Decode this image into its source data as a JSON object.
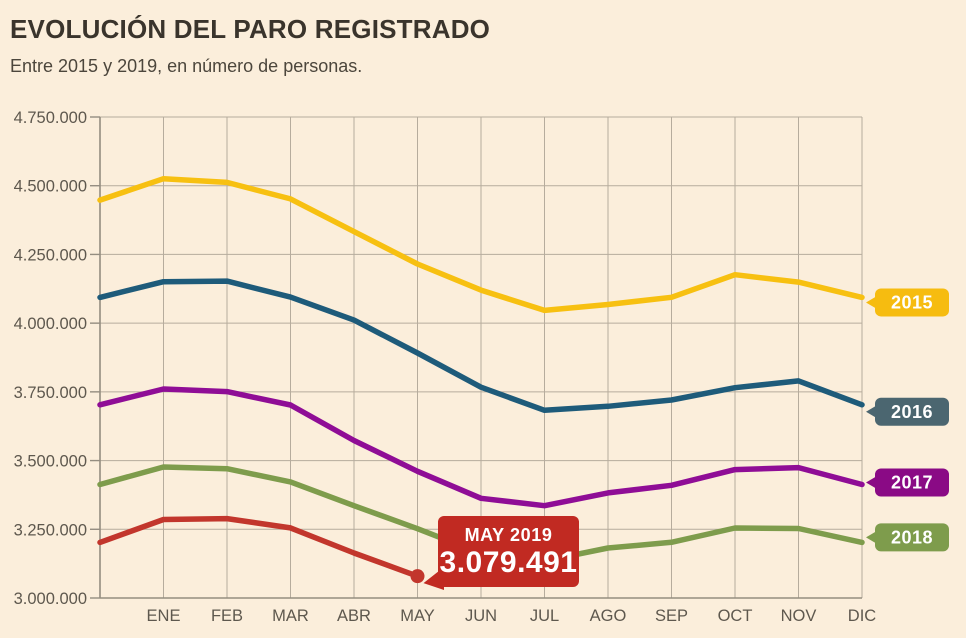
{
  "chart_data": {
    "type": "line",
    "title": "EVOLUCIÓN DEL PARO REGISTRADO",
    "subtitle": "Entre 2015 y 2019, en número de personas.",
    "x_categories": [
      "ENE",
      "FEB",
      "MAR",
      "ABR",
      "MAY",
      "JUN",
      "JUL",
      "AGO",
      "SEP",
      "OCT",
      "NOV",
      "DIC"
    ],
    "y_min": 3000000,
    "y_max": 4750000,
    "y_step": 250000,
    "y_tick_labels": [
      "4.750.000",
      "4.500.000",
      "4.250.000",
      "4.000.000",
      "3.750.000",
      "3.500.000",
      "3.250.000",
      "3.000.000"
    ],
    "grid": true,
    "legend_position": "right-tags",
    "series_note": "each series starts with the previous December value drawn on the y-axis",
    "series": [
      {
        "name": "2015",
        "color": "#F7C011",
        "tag_color": "#F6BC10",
        "tag_dy": 5,
        "prev_dec": 4447711,
        "values": [
          4525691,
          4512153,
          4451939,
          4333016,
          4215031,
          4120304,
          4046276,
          4067955,
          4094042,
          4176369,
          4149298,
          4093508
        ]
      },
      {
        "name": "2016",
        "color": "#1E5B7A",
        "tag_color": "#4B6670",
        "tag_dy": 7,
        "prev_dec": 4093508,
        "values": [
          4150755,
          4152986,
          4094770,
          4011171,
          3891403,
          3767054,
          3683061,
          3697496,
          3720297,
          3764982,
          3789823,
          3702974
        ]
      },
      {
        "name": "2017",
        "color": "#8F0D96",
        "tag_color": "#8A0A85",
        "tag_dy": -2,
        "prev_dec": 3702974,
        "values": [
          3760231,
          3750876,
          3702317,
          3573036,
          3461128,
          3362811,
          3335924,
          3382324,
          3410182,
          3467026,
          3474281,
          3412781
        ]
      },
      {
        "name": "2018",
        "color": "#7E9C4C",
        "tag_color": "#7E9C4C",
        "tag_dy": -5,
        "prev_dec": 3412781,
        "values": [
          3476528,
          3470248,
          3422551,
          3335868,
          3252130,
          3162262,
          3135121,
          3182060,
          3202509,
          3254703,
          3252867,
          3202297
        ]
      },
      {
        "name": "2019",
        "color": "#C2362C",
        "end_marker": true,
        "prev_dec": 3202297,
        "values": [
          3285761,
          3289040,
          3255084,
          3163566,
          3079491
        ]
      }
    ],
    "annotation": {
      "label": "MAY 2019",
      "value": "3.079.491",
      "bg": "#C12A22",
      "text_color": "#FFFFFF",
      "points_to": {
        "series": "2019",
        "month": "MAY"
      }
    },
    "colors": {
      "background": "#FBEEDB",
      "grid": "#B6AC9D",
      "axis": "#948D80",
      "tick_text": "#5E584E",
      "title_text": "#3A342C"
    }
  }
}
